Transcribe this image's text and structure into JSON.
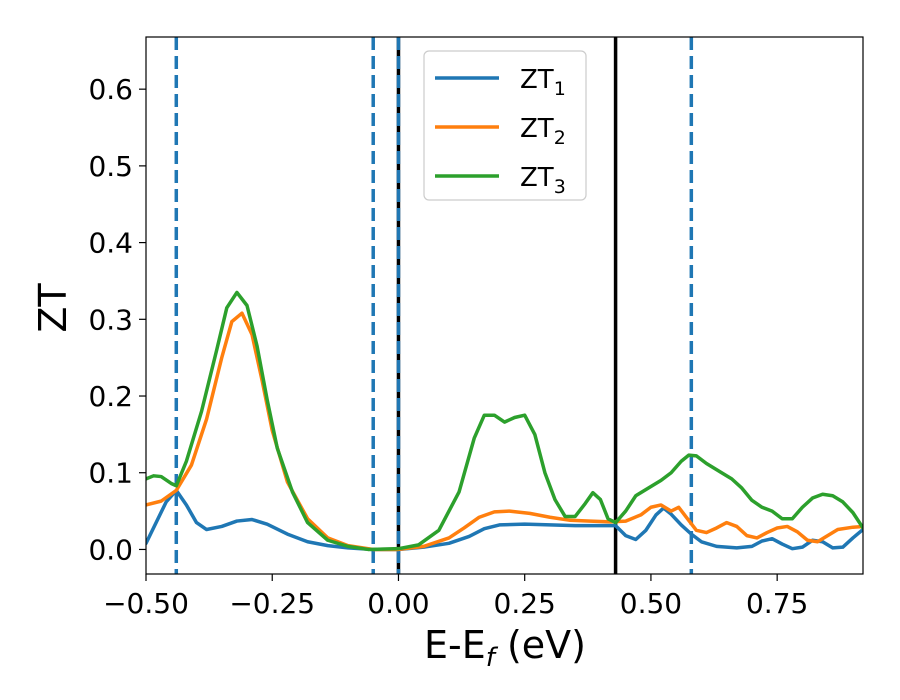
{
  "chart_data": {
    "type": "line",
    "title": "",
    "xlabel": {
      "main": "E-E",
      "sub": "f",
      "suffix": " (eV)"
    },
    "ylabel": "ZT",
    "xlim": [
      -0.5,
      0.92
    ],
    "ylim": [
      -0.032,
      0.668
    ],
    "xticks": [
      -0.5,
      -0.25,
      0.0,
      0.25,
      0.5,
      0.75
    ],
    "xtick_labels": [
      "−0.50",
      "−0.25",
      "0.00",
      "0.25",
      "0.50",
      "0.75"
    ],
    "yticks": [
      0.0,
      0.1,
      0.2,
      0.3,
      0.4,
      0.5,
      0.6
    ],
    "ytick_labels": [
      "0.0",
      "0.1",
      "0.2",
      "0.3",
      "0.4",
      "0.5",
      "0.6"
    ],
    "grid": false,
    "legend_position": "top-center",
    "series": [
      {
        "name": "ZT",
        "name_sub": "1",
        "color": "#1f77b4",
        "points": [
          [
            -0.5,
            0.008
          ],
          [
            -0.48,
            0.035
          ],
          [
            -0.46,
            0.062
          ],
          [
            -0.44,
            0.077
          ],
          [
            -0.42,
            0.058
          ],
          [
            -0.4,
            0.035
          ],
          [
            -0.38,
            0.026
          ],
          [
            -0.35,
            0.03
          ],
          [
            -0.32,
            0.037
          ],
          [
            -0.29,
            0.039
          ],
          [
            -0.26,
            0.033
          ],
          [
            -0.22,
            0.02
          ],
          [
            -0.18,
            0.01
          ],
          [
            -0.14,
            0.005
          ],
          [
            -0.1,
            0.002
          ],
          [
            -0.05,
            0.0
          ],
          [
            0.0,
            0.0
          ],
          [
            0.05,
            0.003
          ],
          [
            0.1,
            0.008
          ],
          [
            0.14,
            0.017
          ],
          [
            0.17,
            0.027
          ],
          [
            0.2,
            0.032
          ],
          [
            0.25,
            0.033
          ],
          [
            0.3,
            0.032
          ],
          [
            0.35,
            0.031
          ],
          [
            0.4,
            0.031
          ],
          [
            0.43,
            0.031
          ],
          [
            0.45,
            0.018
          ],
          [
            0.47,
            0.013
          ],
          [
            0.49,
            0.025
          ],
          [
            0.51,
            0.045
          ],
          [
            0.525,
            0.054
          ],
          [
            0.54,
            0.046
          ],
          [
            0.56,
            0.032
          ],
          [
            0.58,
            0.02
          ],
          [
            0.6,
            0.01
          ],
          [
            0.63,
            0.004
          ],
          [
            0.67,
            0.002
          ],
          [
            0.7,
            0.004
          ],
          [
            0.72,
            0.011
          ],
          [
            0.74,
            0.014
          ],
          [
            0.76,
            0.007
          ],
          [
            0.78,
            0.001
          ],
          [
            0.8,
            0.003
          ],
          [
            0.82,
            0.012
          ],
          [
            0.84,
            0.01
          ],
          [
            0.86,
            0.002
          ],
          [
            0.88,
            0.003
          ],
          [
            0.9,
            0.015
          ],
          [
            0.92,
            0.026
          ]
        ]
      },
      {
        "name": "ZT",
        "name_sub": "2",
        "color": "#ff7f0e",
        "points": [
          [
            -0.5,
            0.058
          ],
          [
            -0.47,
            0.063
          ],
          [
            -0.44,
            0.077
          ],
          [
            -0.41,
            0.11
          ],
          [
            -0.38,
            0.17
          ],
          [
            -0.35,
            0.25
          ],
          [
            -0.33,
            0.297
          ],
          [
            -0.31,
            0.308
          ],
          [
            -0.29,
            0.28
          ],
          [
            -0.27,
            0.22
          ],
          [
            -0.25,
            0.155
          ],
          [
            -0.22,
            0.088
          ],
          [
            -0.18,
            0.04
          ],
          [
            -0.14,
            0.015
          ],
          [
            -0.1,
            0.005
          ],
          [
            -0.05,
            0.0
          ],
          [
            0.0,
            0.0
          ],
          [
            0.05,
            0.004
          ],
          [
            0.1,
            0.015
          ],
          [
            0.13,
            0.028
          ],
          [
            0.16,
            0.042
          ],
          [
            0.19,
            0.049
          ],
          [
            0.22,
            0.05
          ],
          [
            0.26,
            0.047
          ],
          [
            0.3,
            0.042
          ],
          [
            0.34,
            0.038
          ],
          [
            0.38,
            0.037
          ],
          [
            0.42,
            0.036
          ],
          [
            0.45,
            0.037
          ],
          [
            0.48,
            0.045
          ],
          [
            0.5,
            0.055
          ],
          [
            0.52,
            0.058
          ],
          [
            0.54,
            0.05
          ],
          [
            0.555,
            0.055
          ],
          [
            0.57,
            0.042
          ],
          [
            0.59,
            0.025
          ],
          [
            0.61,
            0.022
          ],
          [
            0.63,
            0.028
          ],
          [
            0.65,
            0.035
          ],
          [
            0.67,
            0.03
          ],
          [
            0.69,
            0.018
          ],
          [
            0.71,
            0.015
          ],
          [
            0.73,
            0.022
          ],
          [
            0.75,
            0.028
          ],
          [
            0.77,
            0.03
          ],
          [
            0.79,
            0.023
          ],
          [
            0.81,
            0.012
          ],
          [
            0.83,
            0.01
          ],
          [
            0.85,
            0.018
          ],
          [
            0.87,
            0.026
          ],
          [
            0.9,
            0.029
          ],
          [
            0.92,
            0.03
          ]
        ]
      },
      {
        "name": "ZT",
        "name_sub": "3",
        "color": "#2ca02c",
        "points": [
          [
            -0.5,
            0.092
          ],
          [
            -0.485,
            0.096
          ],
          [
            -0.47,
            0.095
          ],
          [
            -0.45,
            0.086
          ],
          [
            -0.44,
            0.083
          ],
          [
            -0.42,
            0.115
          ],
          [
            -0.39,
            0.18
          ],
          [
            -0.36,
            0.26
          ],
          [
            -0.34,
            0.315
          ],
          [
            -0.32,
            0.335
          ],
          [
            -0.3,
            0.318
          ],
          [
            -0.28,
            0.265
          ],
          [
            -0.26,
            0.195
          ],
          [
            -0.24,
            0.132
          ],
          [
            -0.21,
            0.075
          ],
          [
            -0.18,
            0.035
          ],
          [
            -0.14,
            0.012
          ],
          [
            -0.1,
            0.004
          ],
          [
            -0.06,
            0.0
          ],
          [
            0.0,
            0.001
          ],
          [
            0.04,
            0.006
          ],
          [
            0.08,
            0.025
          ],
          [
            0.12,
            0.075
          ],
          [
            0.15,
            0.145
          ],
          [
            0.17,
            0.175
          ],
          [
            0.19,
            0.175
          ],
          [
            0.21,
            0.166
          ],
          [
            0.23,
            0.172
          ],
          [
            0.25,
            0.175
          ],
          [
            0.27,
            0.15
          ],
          [
            0.29,
            0.1
          ],
          [
            0.31,
            0.065
          ],
          [
            0.33,
            0.043
          ],
          [
            0.35,
            0.043
          ],
          [
            0.37,
            0.06
          ],
          [
            0.385,
            0.074
          ],
          [
            0.4,
            0.065
          ],
          [
            0.415,
            0.04
          ],
          [
            0.43,
            0.035
          ],
          [
            0.45,
            0.05
          ],
          [
            0.47,
            0.07
          ],
          [
            0.5,
            0.082
          ],
          [
            0.52,
            0.09
          ],
          [
            0.54,
            0.1
          ],
          [
            0.56,
            0.115
          ],
          [
            0.575,
            0.123
          ],
          [
            0.59,
            0.122
          ],
          [
            0.61,
            0.112
          ],
          [
            0.64,
            0.1
          ],
          [
            0.66,
            0.092
          ],
          [
            0.68,
            0.08
          ],
          [
            0.7,
            0.064
          ],
          [
            0.72,
            0.055
          ],
          [
            0.74,
            0.05
          ],
          [
            0.76,
            0.04
          ],
          [
            0.78,
            0.04
          ],
          [
            0.8,
            0.055
          ],
          [
            0.82,
            0.067
          ],
          [
            0.84,
            0.072
          ],
          [
            0.86,
            0.07
          ],
          [
            0.88,
            0.062
          ],
          [
            0.9,
            0.048
          ],
          [
            0.92,
            0.028
          ]
        ]
      }
    ],
    "vlines": [
      {
        "x": -0.44,
        "style": "dashed",
        "color": "#1f77b4"
      },
      {
        "x": -0.05,
        "style": "dashed",
        "color": "#1f77b4"
      },
      {
        "x": 0.0,
        "style": "solid",
        "color": "#000000"
      },
      {
        "x": 0.0,
        "style": "dashed",
        "color": "#1f77b4"
      },
      {
        "x": 0.43,
        "style": "solid",
        "color": "#000000"
      },
      {
        "x": 0.58,
        "style": "dashed",
        "color": "#1f77b4"
      }
    ]
  }
}
